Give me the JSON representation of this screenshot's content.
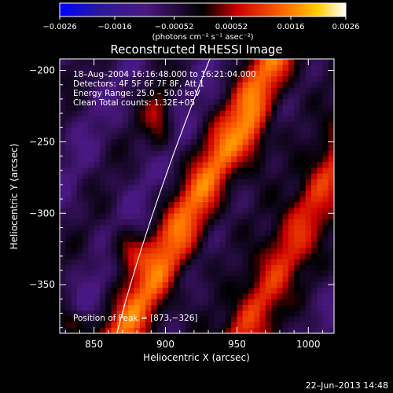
{
  "chart_data": {
    "type": "heatmap",
    "title": "Reconstructed RHESSI Image",
    "xlabel": "Heliocentric X (arcsec)",
    "ylabel": "Heliocentric Y (arcsec)",
    "xlim": [
      826,
      1018
    ],
    "ylim": [
      -384,
      -192
    ],
    "x_ticks": [
      850,
      900,
      950,
      1000
    ],
    "x_tick_labels": [
      "850",
      "900",
      "950",
      "1000"
    ],
    "y_ticks": [
      -200,
      -250,
      -300,
      -350
    ],
    "y_tick_labels": [
      "−200",
      "−250",
      "−300",
      "−350"
    ],
    "colorbar": {
      "range": [
        -0.0026,
        0.0026
      ],
      "ticks": [
        -0.0026,
        -0.0016,
        -0.00052,
        0.00052,
        0.0016,
        0.0026
      ],
      "tick_labels": [
        "−0.0026",
        "−0.0016",
        "−0.00052",
        "0.00052",
        "0.0016",
        "0.0026"
      ],
      "unit_label": "(photons cm⁻² s⁻¹ asec⁻²)",
      "colors": [
        "#0000ff",
        "#2a1a9a",
        "#4a1880",
        "#000000",
        "#cc0000",
        "#ff6600",
        "#ffcc00",
        "#ffffff"
      ]
    },
    "annotations": {
      "time_range": "18–Aug–2004 16:16:48.000 to 16:21:04.000",
      "detectors": "Detectors: 4F 5F 6F 7F 8F, Att 1",
      "energy": "Energy Range: 25.0 – 50.0 keV",
      "clean_total": "Clean    Total counts: 1.32E+05",
      "peak": "Position of Peak = [873,−326]"
    },
    "peak": {
      "x": 873,
      "y": -326
    },
    "limb_arc": {
      "from": [
        866,
        -384
      ],
      "to": [
        931,
        -192
      ]
    },
    "timestamp": "22–Jun–2013 14:48"
  }
}
